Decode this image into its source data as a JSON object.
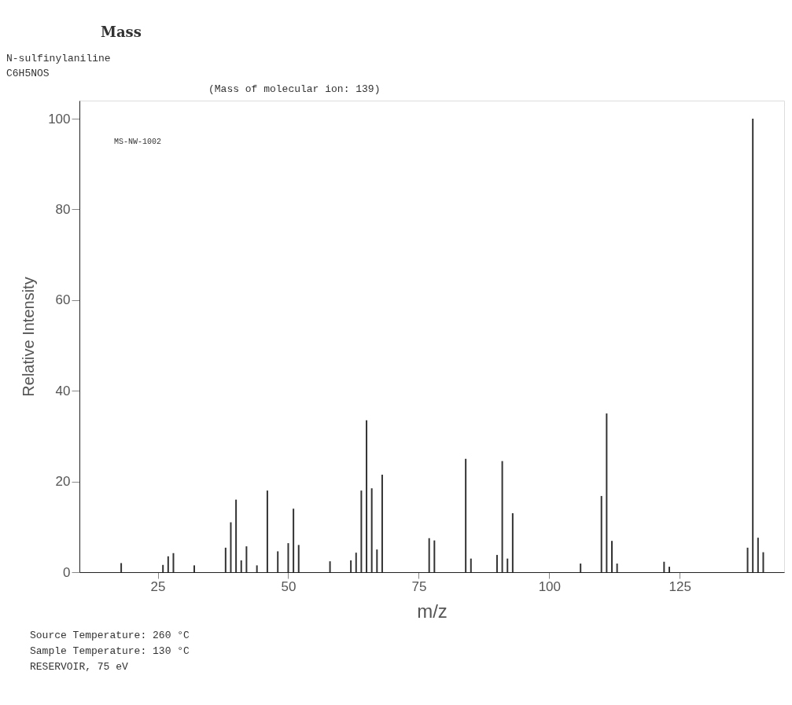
{
  "chart_data": {
    "type": "bar",
    "title": "Mass",
    "xlabel": "m/z",
    "ylabel": "Relative Intensity",
    "annotations": [
      "N-sulfinylaniline",
      "C6H5NOS",
      "(Mass of molecular ion:   139)",
      "MS-NW-1002",
      "Source Temperature: 260 °C",
      "Sample Temperature: 130 °C",
      "RESERVOIR, 75 eV"
    ],
    "x": [
      18,
      26,
      27,
      28,
      32,
      38,
      39,
      40,
      41,
      42,
      44,
      46,
      48,
      50,
      51,
      52,
      58,
      62,
      63,
      64,
      65,
      66,
      67,
      68,
      77,
      78,
      84,
      85,
      90,
      91,
      92,
      93,
      106,
      110,
      111,
      112,
      113,
      122,
      123,
      138,
      139,
      140,
      141
    ],
    "values": [
      2,
      1.6,
      3.5,
      4.2,
      1.5,
      5.4,
      11,
      16,
      2.6,
      5.7,
      1.5,
      18,
      4.6,
      6.4,
      14,
      6,
      2.4,
      2.6,
      4.3,
      18,
      33.5,
      18.5,
      5,
      21.5,
      7.5,
      7,
      25,
      3,
      3.8,
      24.5,
      3,
      13,
      1.9,
      16.8,
      35,
      6.9,
      1.9,
      2.3,
      1.2,
      5.4,
      100,
      7.6,
      4.4
    ],
    "color": "#333333",
    "xlim": [
      10,
      145
    ],
    "xticks": [
      25,
      50,
      75,
      100,
      125
    ],
    "ylim": [
      0,
      104
    ],
    "yticks": [
      0,
      20,
      40,
      60,
      80,
      100
    ],
    "grid": false
  }
}
